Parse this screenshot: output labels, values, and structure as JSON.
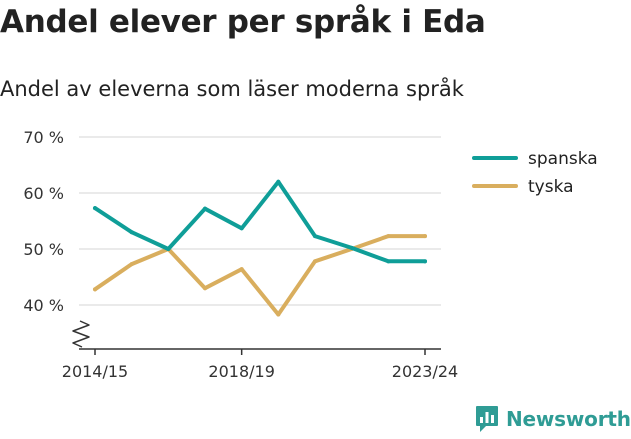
{
  "title": "Andel elever per språk i Eda",
  "subtitle": "Andel av eleverna som läser moderna språk",
  "brand": {
    "name": "Newsworthy",
    "logo_icon": "bar-chart-speech-bubble-icon"
  },
  "colors": {
    "spanska": "#0f9e98",
    "tyska": "#d9ae5e",
    "grid": "#dddddd",
    "text": "#222222"
  },
  "chart_data": {
    "type": "line",
    "title": "Andel elever per språk i Eda",
    "subtitle": "Andel av eleverna som läser moderna språk",
    "x": [
      "2014/15",
      "2015/16",
      "2016/17",
      "2017/18",
      "2018/19",
      "2019/20",
      "2020/21",
      "2021/22",
      "2022/23",
      "2023/24"
    ],
    "x_tick_labels": [
      "2014/15",
      "2018/19",
      "2023/24"
    ],
    "y_tick_labels": [
      "40 %",
      "50 %",
      "60 %",
      "70 %"
    ],
    "y_ticks": [
      40,
      50,
      60,
      70
    ],
    "ylim": [
      33,
      70
    ],
    "y_axis_break": true,
    "grid": true,
    "legend_position": "top-right",
    "series": [
      {
        "name": "spanska",
        "values": [
          57.3,
          53.0,
          50.0,
          57.2,
          53.7,
          62.0,
          52.3,
          50.2,
          47.8,
          47.8
        ]
      },
      {
        "name": "tyska",
        "values": [
          42.8,
          47.3,
          50.0,
          43.0,
          46.4,
          38.3,
          47.8,
          50.0,
          52.3,
          52.3
        ]
      }
    ]
  }
}
